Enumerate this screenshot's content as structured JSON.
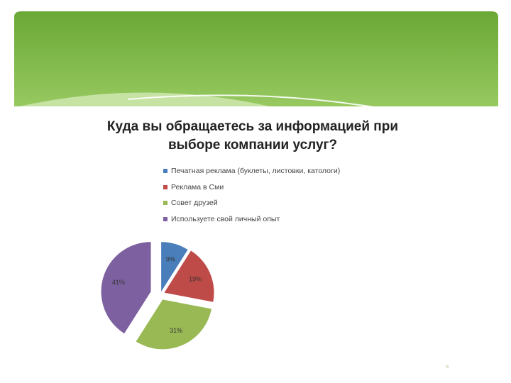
{
  "slide": {
    "page_mark": "»"
  },
  "colors": {
    "banner_top": "#6aa836",
    "banner_bottom": "#a6d46e",
    "wave": "#cfe8b0"
  },
  "chart_data": {
    "type": "pie",
    "title": "Куда вы обращаетесь за информацией при выборе компании услуг?",
    "title_lines": [
      "Куда вы обращаетесь за информацией при",
      "выборе компании услуг?"
    ],
    "categories": [
      "Печатная реклама (буклеты, листовки, катологи)",
      "Реклама в Сми",
      "Совет друзей",
      "Используете свой личный опыт"
    ],
    "values": [
      9,
      19,
      31,
      41
    ],
    "labels": [
      "9%",
      "19%",
      "31%",
      "41%"
    ],
    "colors": [
      "#4a7ebb",
      "#be4b48",
      "#98b954",
      "#7d60a0"
    ],
    "legend_position": "top",
    "exploded": true
  }
}
